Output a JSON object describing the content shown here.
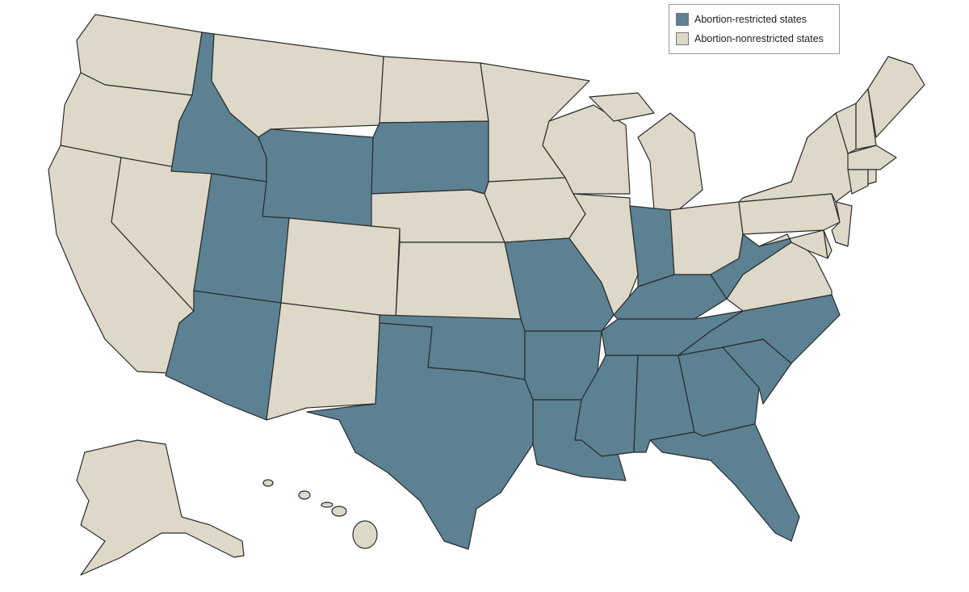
{
  "colors": {
    "restricted": "#5b8193",
    "nonrestricted": "#ddd8c8"
  },
  "legend": {
    "restricted_label": "Abortion-restricted states",
    "nonrestricted_label": "Abortion-nonrestricted states"
  },
  "states": {
    "WA": false,
    "OR": false,
    "CA": false,
    "NV": false,
    "ID": true,
    "MT": false,
    "WY": true,
    "UT": true,
    "AZ": true,
    "CO": false,
    "NM": false,
    "ND": false,
    "SD": true,
    "NE": false,
    "KS": false,
    "OK": true,
    "TX": true,
    "MN": false,
    "IA": false,
    "MO": true,
    "AR": true,
    "LA": true,
    "WI": false,
    "IL": false,
    "MI": false,
    "IN": true,
    "OH": false,
    "KY": true,
    "TN": true,
    "MS": true,
    "AL": true,
    "GA": true,
    "FL": true,
    "SC": true,
    "NC": true,
    "VA": false,
    "WV": true,
    "PA": false,
    "NY": false,
    "MD": false,
    "DE": false,
    "NJ": false,
    "VT": false,
    "NH": false,
    "ME": false,
    "MA": false,
    "CT": false,
    "RI": false,
    "AK": false,
    "HI": false
  }
}
